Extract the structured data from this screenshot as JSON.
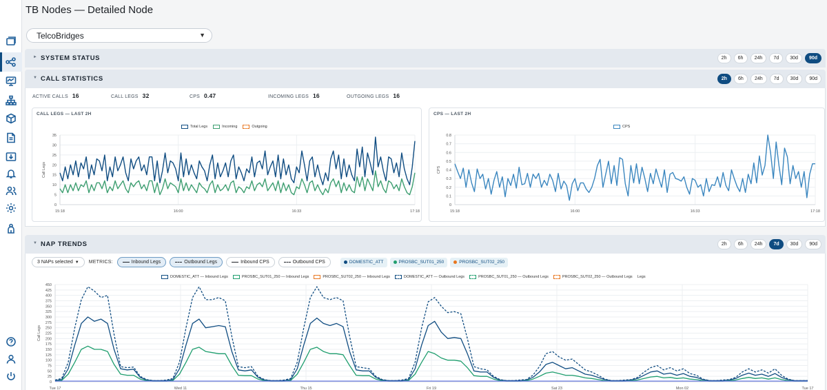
{
  "page": {
    "title": "TB Nodes — Detailed Node"
  },
  "selector": {
    "value": "TelcoBridges"
  },
  "sidebar": {
    "icons": [
      "windows-icon",
      "nodes-graph-icon",
      "monitor-icon",
      "hierarchy-icon",
      "cube-icon",
      "document-icon",
      "download-box-icon",
      "bell-icon",
      "users-icon",
      "gear-icon",
      "plug-icon",
      "help-icon",
      "user-icon",
      "power-icon"
    ]
  },
  "ranges": [
    "2h",
    "6h",
    "24h",
    "7d",
    "30d",
    "90d"
  ],
  "system_status": {
    "title": "SYSTEM STATUS",
    "active_range": "90d"
  },
  "call_statistics": {
    "title": "CALL STATISTICS",
    "active_range": "2h",
    "stats": [
      {
        "label": "ACTIVE CALLS",
        "value": "16"
      },
      {
        "label": "CALL LEGS",
        "value": "32"
      },
      {
        "label": "CPS",
        "value": "0.47"
      },
      {
        "label": "INCOMING LEGS",
        "value": "16"
      },
      {
        "label": "OUTGOING LEGS",
        "value": "16"
      }
    ]
  },
  "nap_trends": {
    "title": "NAP TRENDS",
    "active_range": "7d",
    "nap_select": "3 NAPs selected",
    "metrics_label": "METRICS:",
    "metrics": [
      {
        "label": "Inbound Legs",
        "selected": true,
        "style": "solid"
      },
      {
        "label": "Outbound Legs",
        "selected": true,
        "style": "dashed"
      },
      {
        "label": "Inbound CPS",
        "selected": false,
        "style": "solid"
      },
      {
        "label": "Outbound CPS",
        "selected": false,
        "style": "dashed"
      }
    ],
    "naps": [
      {
        "label": "DOMESTIC_ATT",
        "color": "#0f4c81"
      },
      {
        "label": "PROSBC_SUT01_250",
        "color": "#1f9e6e"
      },
      {
        "label": "PROSBC_SUT02_250",
        "color": "#e8761f"
      }
    ]
  },
  "chart_data": [
    {
      "type": "line",
      "title": "CALL LEGS — LAST 2H",
      "ylabel": "Call Legs",
      "ylim": [
        0,
        35
      ],
      "yticks": [
        0,
        5,
        10,
        15,
        20,
        25,
        30,
        35
      ],
      "xticks": [
        "15:18",
        "16:00",
        "16:33",
        "17:18"
      ],
      "legend": [
        "Total Legs",
        "Incoming",
        "Outgoing"
      ],
      "series": [
        {
          "name": "Total Legs",
          "color": "#0f4c81",
          "values": [
            16,
            12,
            19,
            13,
            20,
            15,
            22,
            14,
            21,
            18,
            24,
            13,
            20,
            15,
            23,
            22,
            17,
            25,
            12,
            19,
            14,
            24,
            17,
            20,
            24,
            16,
            12,
            23,
            18,
            22,
            24,
            17,
            20,
            15,
            24,
            24,
            12,
            22,
            11,
            17,
            26,
            16,
            22,
            21,
            18,
            12,
            26,
            14,
            23,
            15,
            20,
            16,
            13,
            22,
            19,
            17,
            12,
            20,
            25,
            13,
            21,
            14,
            17,
            21,
            14,
            22,
            25,
            13,
            19,
            16,
            12,
            18,
            16,
            24,
            14,
            21,
            22,
            18,
            27,
            15,
            19,
            22,
            14,
            25,
            13,
            23,
            15,
            20,
            13,
            11,
            19,
            16,
            27,
            20,
            12,
            22,
            24,
            14,
            20,
            14,
            10,
            16,
            12,
            23,
            27,
            18,
            25,
            13,
            23,
            14,
            20,
            15,
            12,
            28,
            19,
            29,
            14,
            26,
            21,
            15,
            34,
            19,
            24,
            17,
            12,
            24,
            23,
            16,
            21,
            14,
            26,
            18,
            13,
            10,
            19,
            32
          ]
        },
        {
          "name": "Incoming",
          "color": "#3d9e70",
          "values": [
            8,
            6,
            10,
            6,
            10,
            7,
            11,
            7,
            10,
            9,
            12,
            6,
            10,
            7,
            11,
            11,
            8,
            12,
            6,
            9,
            7,
            12,
            8,
            10,
            12,
            8,
            6,
            11,
            9,
            11,
            12,
            8,
            10,
            7,
            12,
            12,
            6,
            11,
            5,
            8,
            13,
            8,
            11,
            10,
            9,
            6,
            13,
            7,
            11,
            7,
            10,
            8,
            6,
            11,
            9,
            8,
            6,
            10,
            12,
            6,
            10,
            7,
            8,
            10,
            7,
            11,
            12,
            6,
            9,
            8,
            6,
            9,
            8,
            12,
            7,
            10,
            11,
            9,
            13,
            7,
            9,
            11,
            7,
            12,
            6,
            11,
            7,
            10,
            6,
            5,
            9,
            8,
            13,
            10,
            6,
            11,
            12,
            7,
            10,
            7,
            5,
            8,
            6,
            11,
            13,
            9,
            12,
            6,
            11,
            7,
            10,
            7,
            6,
            14,
            9,
            14,
            7,
            13,
            10,
            7,
            17,
            9,
            12,
            8,
            6,
            12,
            11,
            8,
            10,
            7,
            13,
            9,
            6,
            5,
            9,
            16
          ]
        },
        {
          "name": "Outgoing",
          "color": "#e8761f",
          "values": []
        }
      ]
    },
    {
      "type": "line",
      "title": "CPS — LAST 2H",
      "ylabel": "CPS",
      "ylim": [
        0,
        0.8
      ],
      "yticks": [
        0,
        0.1,
        0.2,
        0.3,
        0.4,
        0.5,
        0.6,
        0.7,
        0.8
      ],
      "xticks": [
        "15:18",
        "16:00",
        "16:33",
        "17:18"
      ],
      "legend": [
        "CPS"
      ],
      "series": [
        {
          "name": "CPS",
          "color": "#3a86bf",
          "values": [
            0.47,
            0.38,
            0.3,
            0.42,
            0.2,
            0.4,
            0.25,
            0.15,
            0.41,
            0.3,
            0.35,
            0.18,
            0.3,
            0.12,
            0.28,
            0.38,
            0.2,
            0.32,
            0.09,
            0.3,
            0.22,
            0.35,
            0.19,
            0.43,
            0.23,
            0.24,
            0.36,
            0.2,
            0.35,
            0.3,
            0.36,
            0.2,
            0.28,
            0.22,
            0.35,
            0.28,
            0.15,
            0.36,
            0.18,
            0.27,
            0.22,
            0.05,
            0.24,
            0.3,
            0.16,
            0.25,
            0.25,
            0.18,
            0.14,
            0.2,
            0.3,
            0.45,
            0.52,
            0.2,
            0.35,
            0.5,
            0.24,
            0.45,
            0.22,
            0.54,
            0.52,
            0.24,
            0.1,
            0.45,
            0.25,
            0.47,
            0.24,
            0.43,
            0.3,
            0.15,
            0.36,
            0.24,
            0.41,
            0.3,
            0.2,
            0.4,
            0.14,
            0.35,
            0.37,
            0.3,
            0.29,
            0.27,
            0.32,
            0.2,
            0.12,
            0.3,
            0.28,
            0.2,
            0.23,
            0.1,
            0.3,
            0.15,
            0.23,
            0.22,
            0.32,
            0.2,
            0.37,
            0.22,
            0.16,
            0.4,
            0.3,
            0.21,
            0.15,
            0.3,
            0.14,
            0.35,
            0.24,
            0.48,
            0.25,
            0.56,
            0.34,
            0.45,
            0.8,
            0.6,
            0.3,
            0.72,
            0.45,
            0.23,
            0.65,
            0.55,
            0.24,
            0.45,
            0.3,
            0.38,
            0.2,
            0.38,
            0.08,
            0.35,
            0.47,
            0.47
          ]
        }
      ]
    },
    {
      "type": "line",
      "ylabel": "Call Legs",
      "ylim": [
        0,
        450
      ],
      "yticks": [
        0,
        25,
        50,
        75,
        100,
        125,
        150,
        175,
        200,
        225,
        250,
        275,
        300,
        325,
        350,
        375,
        400,
        425,
        450
      ],
      "xticks": [
        "Tue 17",
        "Wed 11",
        "Thu 15",
        "Fri 19",
        "Sat 23",
        "Mon 02",
        "Tue 17"
      ],
      "legend": [
        "DOMESTIC_ATT — Inbound Legs",
        "PROSBC_SUT01_250 — Inbound Legs",
        "PROSBC_SUT02_250 — Inbound Legs",
        "DOMESTIC_ATT — Outbound Legs",
        "PROSBC_SUT01_250 — Outbound Legs",
        "PROSBC_SUT02_250 — Outbound Legs",
        "Legs"
      ],
      "peaks_inbound_domestic": [
        300,
        290,
        295,
        280,
        90,
        50,
        40,
        40
      ],
      "series": [
        {
          "name": "DOMESTIC_ATT — Inbound Legs",
          "color": "#0f4c81",
          "style": "solid",
          "values": [
            5,
            10,
            60,
            170,
            270,
            300,
            280,
            290,
            270,
            150,
            60,
            55,
            58,
            20,
            8,
            5,
            5,
            5,
            10,
            60,
            170,
            270,
            290,
            250,
            255,
            260,
            255,
            140,
            55,
            50,
            55,
            20,
            8,
            5,
            5,
            5,
            10,
            60,
            170,
            270,
            295,
            270,
            260,
            270,
            255,
            140,
            55,
            50,
            50,
            20,
            8,
            5,
            5,
            5,
            10,
            60,
            170,
            260,
            280,
            230,
            200,
            205,
            200,
            130,
            50,
            45,
            45,
            20,
            8,
            5,
            5,
            5,
            8,
            20,
            45,
            80,
            90,
            75,
            60,
            65,
            50,
            35,
            30,
            20,
            10,
            5,
            5,
            5,
            8,
            15,
            30,
            45,
            50,
            35,
            40,
            30,
            38,
            25,
            20,
            10,
            5,
            5,
            5,
            8,
            15,
            30,
            40,
            30,
            35,
            25,
            38,
            20,
            10,
            5,
            5,
            5
          ]
        },
        {
          "name": "PROSBC_SUT01_250 — Inbound Legs",
          "color": "#1f9e6e",
          "style": "solid",
          "values": [
            3,
            6,
            35,
            90,
            150,
            165,
            150,
            150,
            140,
            80,
            35,
            30,
            30,
            12,
            5,
            3,
            3,
            3,
            6,
            35,
            90,
            150,
            160,
            140,
            135,
            130,
            130,
            75,
            30,
            28,
            28,
            12,
            5,
            3,
            3,
            3,
            6,
            35,
            90,
            150,
            160,
            140,
            130,
            130,
            125,
            75,
            30,
            28,
            28,
            12,
            5,
            3,
            3,
            3,
            6,
            35,
            90,
            140,
            130,
            110,
            100,
            100,
            95,
            65,
            28,
            25,
            25,
            12,
            5,
            3,
            3,
            3,
            5,
            12,
            25,
            40,
            45,
            38,
            30,
            30,
            25,
            18,
            15,
            10,
            5,
            3,
            3,
            3,
            5,
            8,
            15,
            22,
            25,
            18,
            20,
            15,
            18,
            12,
            10,
            5,
            3,
            3,
            3,
            5,
            8,
            15,
            20,
            15,
            18,
            12,
            18,
            10,
            5,
            3,
            3,
            3
          ]
        },
        {
          "name": "PROSBC_SUT02_250 — Inbound Legs",
          "color": "#e8761f",
          "style": "solid",
          "values": []
        },
        {
          "name": "DOMESTIC_ATT — Outbound Legs",
          "color": "#0f4c81",
          "style": "dashed",
          "values": [
            8,
            15,
            90,
            250,
            380,
            440,
            420,
            390,
            400,
            220,
            70,
            65,
            68,
            25,
            10,
            5,
            5,
            8,
            15,
            90,
            250,
            390,
            440,
            380,
            380,
            390,
            375,
            210,
            70,
            65,
            70,
            25,
            10,
            5,
            5,
            8,
            15,
            90,
            250,
            390,
            440,
            390,
            380,
            390,
            375,
            210,
            70,
            65,
            60,
            25,
            10,
            5,
            5,
            8,
            15,
            90,
            250,
            370,
            390,
            350,
            320,
            325,
            315,
            200,
            70,
            60,
            55,
            25,
            10,
            5,
            5,
            8,
            10,
            30,
            70,
            130,
            140,
            115,
            100,
            105,
            80,
            55,
            45,
            30,
            12,
            5,
            5,
            8,
            10,
            20,
            45,
            65,
            75,
            55,
            65,
            50,
            60,
            38,
            30,
            12,
            5,
            5,
            8,
            10,
            20,
            45,
            60,
            45,
            55,
            40,
            60,
            30,
            12,
            5,
            5,
            5
          ]
        },
        {
          "name": "PROSBC_SUT01_250 — Outbound Legs",
          "color": "#1f9e6e",
          "style": "dashed",
          "values": []
        },
        {
          "name": "PROSBC_SUT02_250 — Outbound Legs",
          "color": "#e8761f",
          "style": "dashed",
          "values": []
        }
      ]
    }
  ]
}
